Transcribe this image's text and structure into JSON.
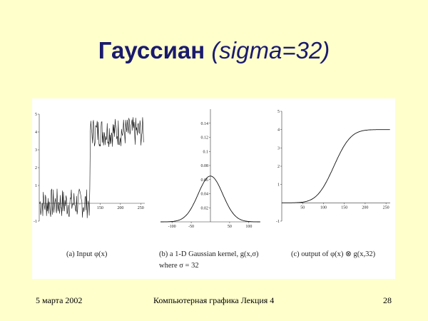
{
  "slide": {
    "title_main": "Гауссиан",
    "title_sub": "(sigma=32)",
    "footer_date": "5 марта 2002",
    "footer_center": "Компьютерная графика Лекция 4",
    "footer_page": "28"
  },
  "captions": {
    "a": "(a) Input φ(x)",
    "b_line1": "(b) a 1-D Gaussian kernel, g(x,σ)",
    "b_line2": "where σ = 32",
    "c": "(c) output of φ(x) ⊗ g(x,32)"
  },
  "chart_data": [
    {
      "type": "line",
      "series": [
        {
          "kind": "noisy step",
          "left_level": 0,
          "right_level": 4,
          "step_at": 125,
          "noise_amplitude": 0.6
        }
      ],
      "xlim": [
        0,
        260
      ],
      "ylim": [
        -1,
        5
      ],
      "xticks": [
        50,
        100,
        150,
        200,
        250
      ],
      "yticks": [
        -1,
        1,
        2,
        3,
        4,
        5
      ],
      "xtick_labels": [
        "",
        "",
        "150",
        "200",
        "250"
      ],
      "ytick_labels": [
        "-1",
        "1",
        "2",
        "3",
        "4",
        "5"
      ]
    },
    {
      "type": "line",
      "series": [
        {
          "kind": "gaussian",
          "sigma": 32,
          "peak": 0.065
        }
      ],
      "xlim": [
        -130,
        130
      ],
      "ylim": [
        0,
        0.16
      ],
      "xticks": [
        -100,
        -50,
        50,
        100
      ],
      "yticks": [
        0.02,
        0.04,
        0.06,
        0.08,
        0.1,
        0.12,
        0.14
      ],
      "xtick_labels": [
        "-100",
        "-50",
        "50",
        "100"
      ],
      "ytick_labels": [
        "0.02",
        "0.04",
        "0.06",
        "0.08",
        "0.1",
        "0.12",
        "0.14"
      ]
    },
    {
      "type": "line",
      "series": [
        {
          "kind": "smoothed step",
          "left_level": 0,
          "right_level": 4,
          "center": 125,
          "sigma": 32
        }
      ],
      "xlim": [
        0,
        260
      ],
      "ylim": [
        -1,
        5
      ],
      "xticks": [
        50,
        100,
        150,
        200,
        250
      ],
      "yticks": [
        -1,
        1,
        2,
        3,
        4,
        5
      ],
      "xtick_labels": [
        "50",
        "100",
        "150",
        "200",
        "250"
      ],
      "ytick_labels": [
        "-1",
        "1",
        "2",
        "3",
        "4",
        "5"
      ]
    }
  ]
}
